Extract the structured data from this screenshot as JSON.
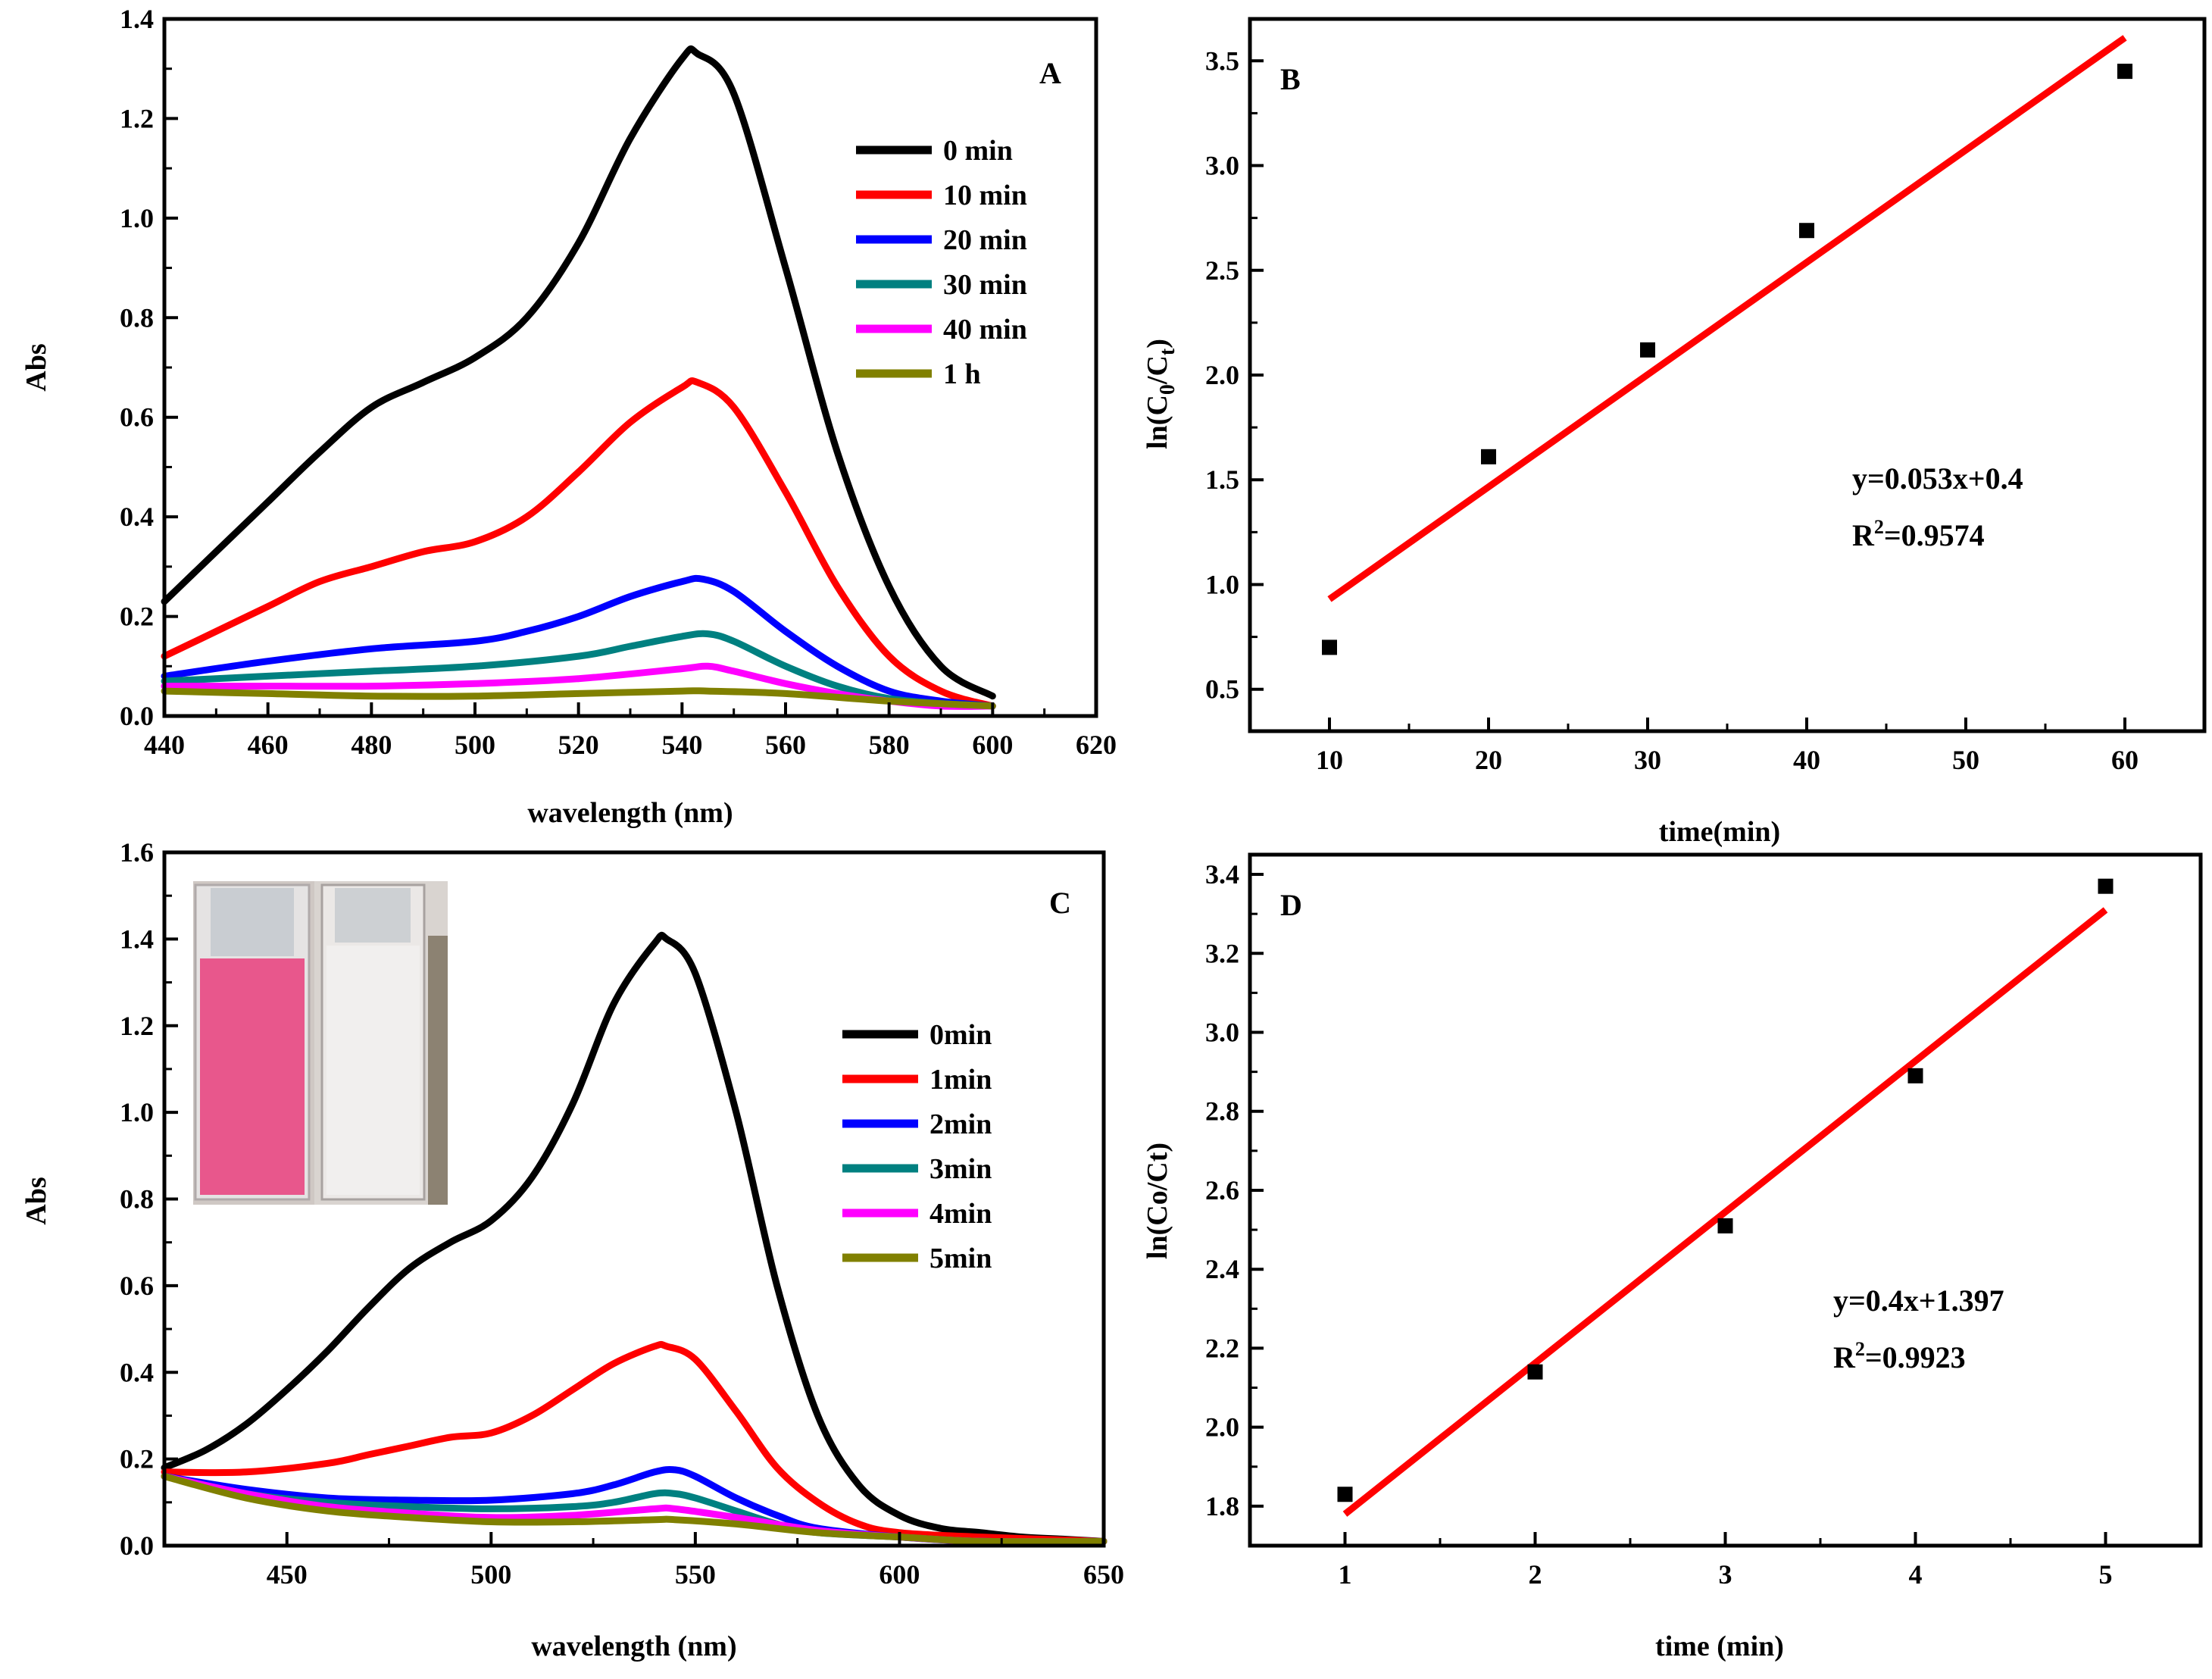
{
  "chart_data": [
    {
      "panel": "A",
      "type": "line",
      "xlabel": "wavelength (nm)",
      "ylabel": "Abs",
      "xlim": [
        440,
        620
      ],
      "ylim": [
        0.0,
        1.4
      ],
      "xticks": [
        "440",
        "460",
        "480",
        "500",
        "520",
        "540",
        "560",
        "580",
        "600",
        "620"
      ],
      "yticks": [
        "0.0",
        "0.2",
        "0.4",
        "0.6",
        "0.8",
        "1.0",
        "1.2",
        "1.4"
      ],
      "legend_position": "top-right",
      "series": [
        {
          "name": "0 min",
          "color": "#000000",
          "x": [
            440,
            450,
            460,
            470,
            480,
            490,
            500,
            510,
            520,
            530,
            540,
            543,
            550,
            560,
            570,
            580,
            590,
            600
          ],
          "y": [
            0.23,
            0.33,
            0.43,
            0.53,
            0.62,
            0.67,
            0.72,
            0.8,
            0.95,
            1.16,
            1.32,
            1.33,
            1.25,
            0.9,
            0.53,
            0.26,
            0.1,
            0.04
          ]
        },
        {
          "name": "10 min",
          "color": "#ff0000",
          "x": [
            440,
            450,
            460,
            470,
            480,
            490,
            500,
            510,
            520,
            530,
            540,
            543,
            550,
            560,
            570,
            580,
            590,
            600
          ],
          "y": [
            0.12,
            0.17,
            0.22,
            0.27,
            0.3,
            0.33,
            0.35,
            0.4,
            0.49,
            0.59,
            0.66,
            0.67,
            0.62,
            0.45,
            0.26,
            0.12,
            0.05,
            0.02
          ]
        },
        {
          "name": "20 min",
          "color": "#0000ff",
          "x": [
            440,
            460,
            480,
            500,
            510,
            520,
            530,
            540,
            544,
            550,
            560,
            570,
            580,
            590,
            600
          ],
          "y": [
            0.08,
            0.11,
            0.135,
            0.15,
            0.17,
            0.2,
            0.24,
            0.27,
            0.275,
            0.25,
            0.17,
            0.1,
            0.05,
            0.03,
            0.02
          ]
        },
        {
          "name": "30 min",
          "color": "#008080",
          "x": [
            440,
            460,
            480,
            500,
            520,
            530,
            540,
            545,
            550,
            560,
            570,
            580,
            590,
            600
          ],
          "y": [
            0.07,
            0.08,
            0.09,
            0.1,
            0.12,
            0.14,
            0.16,
            0.165,
            0.15,
            0.1,
            0.06,
            0.035,
            0.025,
            0.02
          ]
        },
        {
          "name": "40 min",
          "color": "#ff00ff",
          "x": [
            440,
            460,
            480,
            500,
            520,
            540,
            545,
            550,
            560,
            570,
            580,
            590,
            600
          ],
          "y": [
            0.06,
            0.06,
            0.06,
            0.065,
            0.075,
            0.095,
            0.1,
            0.09,
            0.065,
            0.045,
            0.03,
            0.02,
            0.02
          ]
        },
        {
          "name": "1 h",
          "color": "#808000",
          "x": [
            440,
            460,
            480,
            500,
            520,
            540,
            545,
            560,
            580,
            600
          ],
          "y": [
            0.05,
            0.045,
            0.04,
            0.04,
            0.045,
            0.05,
            0.05,
            0.045,
            0.03,
            0.02
          ]
        }
      ]
    },
    {
      "panel": "B",
      "type": "scatter",
      "xlabel": "time(min)",
      "ylabel": "ln(C0/Ct)",
      "ylabel_main": "ln(C",
      "ylabel_sub1": "0",
      "ylabel_mid": "/C",
      "ylabel_sub2": "t",
      "ylabel_end": ")",
      "xlim": [
        5,
        65
      ],
      "ylim": [
        0.3,
        3.7
      ],
      "xticks": [
        "10",
        "20",
        "30",
        "40",
        "50",
        "60"
      ],
      "yticks": [
        "0.5",
        "1.0",
        "1.5",
        "2.0",
        "2.5",
        "3.0",
        "3.5"
      ],
      "points": {
        "x": [
          10,
          20,
          30,
          40,
          60
        ],
        "y": [
          0.7,
          1.61,
          2.12,
          2.69,
          3.45
        ]
      },
      "fit_line": {
        "x": [
          10,
          60
        ],
        "y": [
          0.93,
          3.61
        ],
        "color": "#ff0000"
      },
      "equation": "y=0.053x+0.4",
      "r2_prefix": "R",
      "r2_sup": "2",
      "r2_value": "=0.9574"
    },
    {
      "panel": "C",
      "type": "line",
      "xlabel": "wavelength (nm)",
      "ylabel": "Abs",
      "xlim": [
        420,
        650
      ],
      "ylim": [
        0.0,
        1.6
      ],
      "xticks": [
        "450",
        "500",
        "550",
        "600",
        "650"
      ],
      "yticks": [
        "0.0",
        "0.2",
        "0.4",
        "0.6",
        "0.8",
        "1.0",
        "1.2",
        "1.4",
        "1.6"
      ],
      "legend_position": "right",
      "series": [
        {
          "name": "0min",
          "color": "#000000",
          "x": [
            420,
            430,
            440,
            450,
            460,
            470,
            480,
            490,
            500,
            510,
            520,
            530,
            540,
            543,
            550,
            560,
            570,
            580,
            590,
            600,
            610,
            620,
            630,
            640,
            650
          ],
          "y": [
            0.18,
            0.22,
            0.28,
            0.36,
            0.45,
            0.55,
            0.64,
            0.7,
            0.75,
            0.85,
            1.02,
            1.25,
            1.39,
            1.4,
            1.32,
            1.0,
            0.6,
            0.3,
            0.14,
            0.07,
            0.04,
            0.03,
            0.02,
            0.015,
            0.01
          ]
        },
        {
          "name": "1min",
          "color": "#ff0000",
          "x": [
            420,
            440,
            460,
            470,
            480,
            490,
            500,
            510,
            520,
            530,
            540,
            543,
            550,
            560,
            570,
            580,
            590,
            600,
            620,
            650
          ],
          "y": [
            0.17,
            0.17,
            0.19,
            0.21,
            0.23,
            0.25,
            0.26,
            0.3,
            0.36,
            0.42,
            0.46,
            0.46,
            0.43,
            0.31,
            0.18,
            0.1,
            0.05,
            0.03,
            0.02,
            0.01
          ]
        },
        {
          "name": "2min",
          "color": "#0000ff",
          "x": [
            420,
            440,
            460,
            480,
            500,
            520,
            530,
            540,
            545,
            550,
            560,
            570,
            580,
            600,
            620,
            650
          ],
          "y": [
            0.16,
            0.13,
            0.11,
            0.105,
            0.105,
            0.12,
            0.14,
            0.17,
            0.175,
            0.16,
            0.11,
            0.07,
            0.04,
            0.02,
            0.01,
            0.01
          ]
        },
        {
          "name": "3min",
          "color": "#008080",
          "x": [
            420,
            440,
            460,
            480,
            500,
            520,
            530,
            540,
            545,
            550,
            560,
            570,
            580,
            600,
            620,
            650
          ],
          "y": [
            0.16,
            0.12,
            0.1,
            0.09,
            0.085,
            0.09,
            0.1,
            0.12,
            0.12,
            0.11,
            0.08,
            0.05,
            0.03,
            0.02,
            0.01,
            0.01
          ]
        },
        {
          "name": "4min",
          "color": "#ff00ff",
          "x": [
            420,
            440,
            460,
            480,
            500,
            520,
            540,
            545,
            560,
            580,
            600,
            620,
            650
          ],
          "y": [
            0.16,
            0.12,
            0.09,
            0.075,
            0.065,
            0.07,
            0.085,
            0.085,
            0.065,
            0.035,
            0.02,
            0.01,
            0.01
          ]
        },
        {
          "name": "5min",
          "color": "#808000",
          "x": [
            420,
            440,
            460,
            480,
            500,
            520,
            540,
            545,
            560,
            580,
            600,
            620,
            650
          ],
          "y": [
            0.16,
            0.11,
            0.08,
            0.065,
            0.055,
            0.055,
            0.06,
            0.06,
            0.05,
            0.03,
            0.02,
            0.01,
            0.01
          ]
        }
      ]
    },
    {
      "panel": "D",
      "type": "scatter",
      "xlabel": "time (min)",
      "ylabel": "ln(Co/Ct)",
      "xlim": [
        0.5,
        5.5
      ],
      "ylim": [
        1.7,
        3.45
      ],
      "xticks": [
        "1",
        "2",
        "3",
        "4",
        "5"
      ],
      "yticks": [
        "1.8",
        "2.0",
        "2.2",
        "2.4",
        "2.6",
        "2.8",
        "3.0",
        "3.2",
        "3.4"
      ],
      "points": {
        "x": [
          1,
          2,
          3,
          4,
          5
        ],
        "y": [
          1.83,
          2.14,
          2.51,
          2.89,
          3.37
        ]
      },
      "fit_line": {
        "x": [
          1,
          5
        ],
        "y": [
          1.78,
          3.31
        ],
        "color": "#ff0000"
      },
      "equation": "y=0.4x+1.397",
      "r2_prefix": "R",
      "r2_sup": "2",
      "r2_value": "=0.9923"
    }
  ],
  "inset_photo": {
    "description_colors": {
      "left_cuvette": "#e8578c",
      "right_cuvette": "#eeeeee",
      "background": "#c8c0bc"
    }
  }
}
